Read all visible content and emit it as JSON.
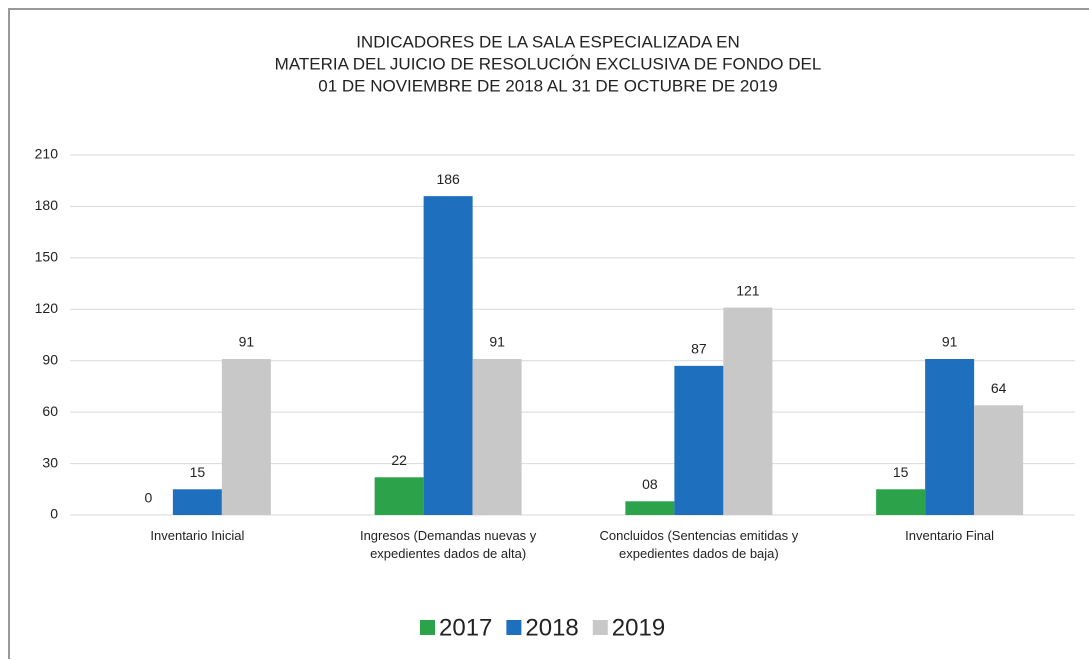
{
  "chart_data": {
    "type": "bar",
    "title": [
      "INDICADORES DE LA SALA ESPECIALIZADA EN",
      "MATERIA DEL JUICIO DE RESOLUCIÓN EXCLUSIVA DE FONDO DEL",
      "01 DE NOVIEMBRE DE 2018 AL 31 DE OCTUBRE DE 2019"
    ],
    "categories": [
      "Inventario Inicial",
      "Ingresos (Demandas nuevas y expedientes dados de alta)",
      "Concluidos (Sentencias emitidas y expedientes dados de baja)",
      "Inventario Final"
    ],
    "series": [
      {
        "name": "2017",
        "color": "#2ca24a",
        "values": [
          0,
          22,
          8,
          15
        ],
        "value_labels": [
          "0",
          "22",
          "08",
          "15"
        ]
      },
      {
        "name": "2018",
        "color": "#1f6fbf",
        "values": [
          15,
          186,
          87,
          91
        ]
      },
      {
        "name": "2019",
        "color": "#c8c8c8",
        "values": [
          91,
          91,
          121,
          64
        ]
      }
    ],
    "ylim": [
      0,
      210
    ],
    "yticks": [
      0,
      30,
      60,
      90,
      120,
      150,
      180,
      210
    ],
    "grid": true,
    "legend": "bottom"
  }
}
